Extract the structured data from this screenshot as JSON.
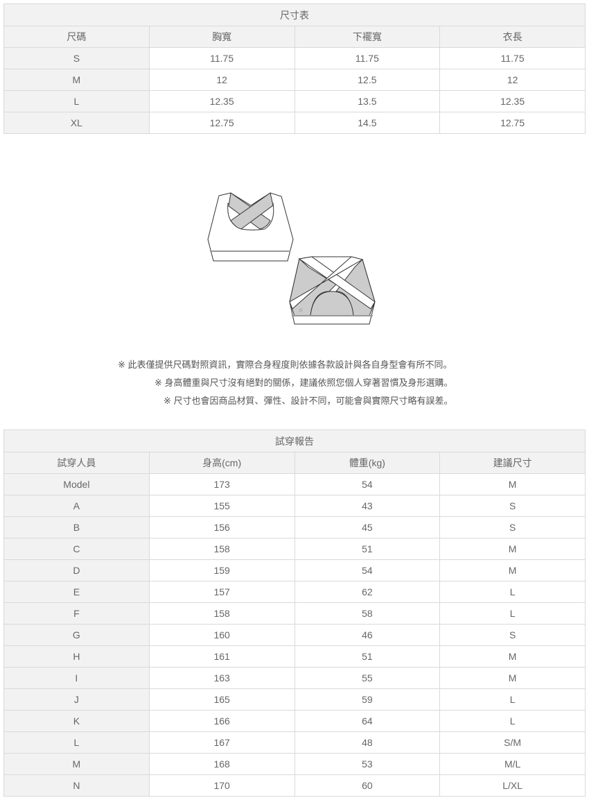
{
  "size_table": {
    "title": "尺寸表",
    "headers": [
      "尺碼",
      "胸寬",
      "下襬寬",
      "衣長"
    ],
    "rows": [
      [
        "S",
        "11.75",
        "11.75",
        "11.75"
      ],
      [
        "M",
        "12",
        "12.5",
        "12"
      ],
      [
        "L",
        "12.35",
        "13.5",
        "12.35"
      ],
      [
        "XL",
        "12.75",
        "14.5",
        "12.75"
      ]
    ]
  },
  "notes": [
    "※ 此表僅提供尺碼對照資訊，實際合身程度則依據各款設計與各自身型會有所不同。",
    "※ 身高體重與尺寸沒有絕對的關係，建議依照您個人穿著習慣及身形選購。",
    "※ 尺寸也會因商品材質、彈性、設計不同，可能會與實際尺寸略有誤差。"
  ],
  "fit_table": {
    "title": "試穿報告",
    "headers": [
      "試穿人員",
      "身高(cm)",
      "體重(kg)",
      "建議尺寸"
    ],
    "rows": [
      [
        "Model",
        "173",
        "54",
        "M"
      ],
      [
        "A",
        "155",
        "43",
        "S"
      ],
      [
        "B",
        "156",
        "45",
        "S"
      ],
      [
        "C",
        "158",
        "51",
        "M"
      ],
      [
        "D",
        "159",
        "54",
        "M"
      ],
      [
        "E",
        "157",
        "62",
        "L"
      ],
      [
        "F",
        "158",
        "58",
        "L"
      ],
      [
        "G",
        "160",
        "46",
        "S"
      ],
      [
        "H",
        "161",
        "51",
        "M"
      ],
      [
        "I",
        "163",
        "55",
        "M"
      ],
      [
        "J",
        "165",
        "59",
        "L"
      ],
      [
        "K",
        "166",
        "64",
        "L"
      ],
      [
        "L",
        "167",
        "48",
        "S/M"
      ],
      [
        "M",
        "168",
        "53",
        "M/L"
      ],
      [
        "N",
        "170",
        "60",
        "L/XL"
      ]
    ]
  }
}
